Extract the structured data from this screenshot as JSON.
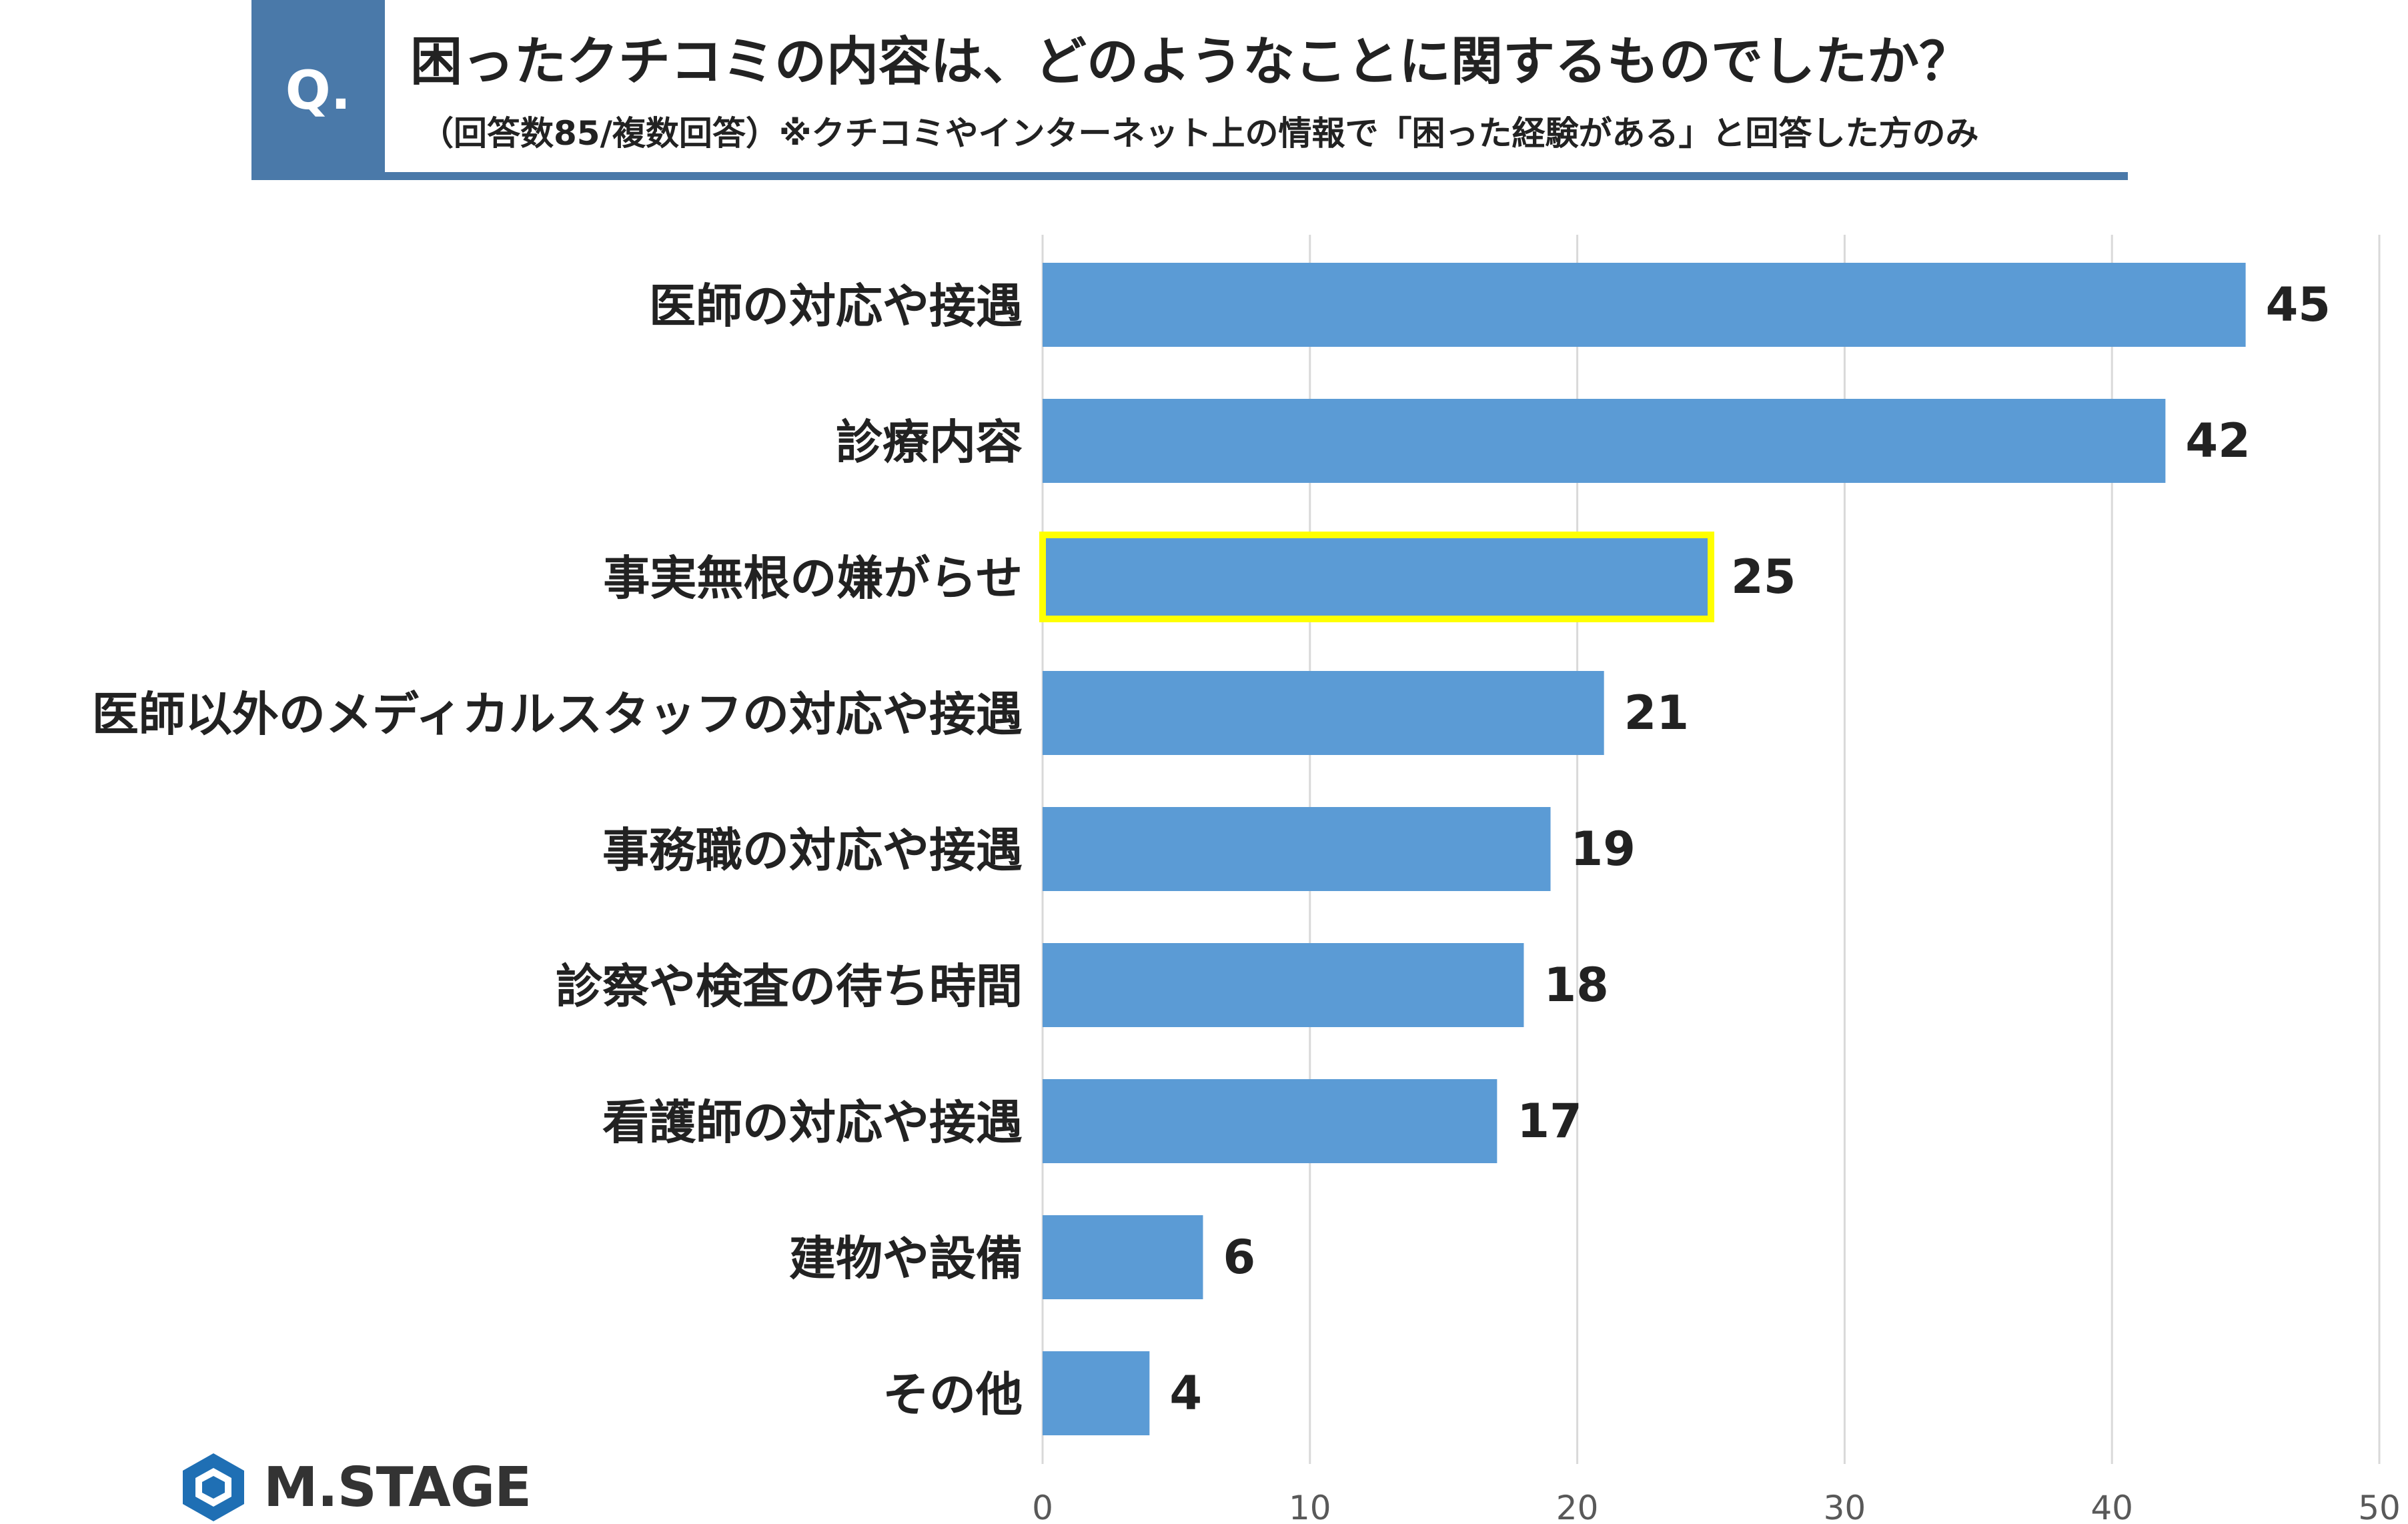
{
  "header": {
    "q_label": "Q.",
    "title": "困ったクチコミの内容は、どのようなことに関するものでしたか？",
    "subtitle": "（回答数85/複数回答）※クチコミやインターネット上の情報で「困った経験がある」と回答した方のみ"
  },
  "logo": {
    "text": "M.STAGE",
    "icon": "hexagon-logo-icon"
  },
  "colors": {
    "bar": "#5b9bd5",
    "highlight": "#ffff00",
    "accent": "#4a79a9",
    "grid": "#d9d9d9"
  },
  "chart_data": {
    "type": "bar",
    "orientation": "horizontal",
    "categories": [
      "医師の対応や接遇",
      "診療内容",
      "事実無根の嫌がらせ",
      "医師以外のメディカルスタッフの対応や接遇",
      "事務職の対応や接遇",
      "診察や検査の待ち時間",
      "看護師の対応や接遇",
      "建物や設備",
      "その他"
    ],
    "values": [
      45,
      42,
      25,
      21,
      19,
      18,
      17,
      6,
      4
    ],
    "highlighted_category": "事実無根の嫌がらせ",
    "xlim": [
      0,
      50
    ],
    "xticks": [
      0,
      10,
      20,
      30,
      40,
      50
    ],
    "grid": true,
    "legend": "none",
    "xlabel": "",
    "ylabel": ""
  }
}
